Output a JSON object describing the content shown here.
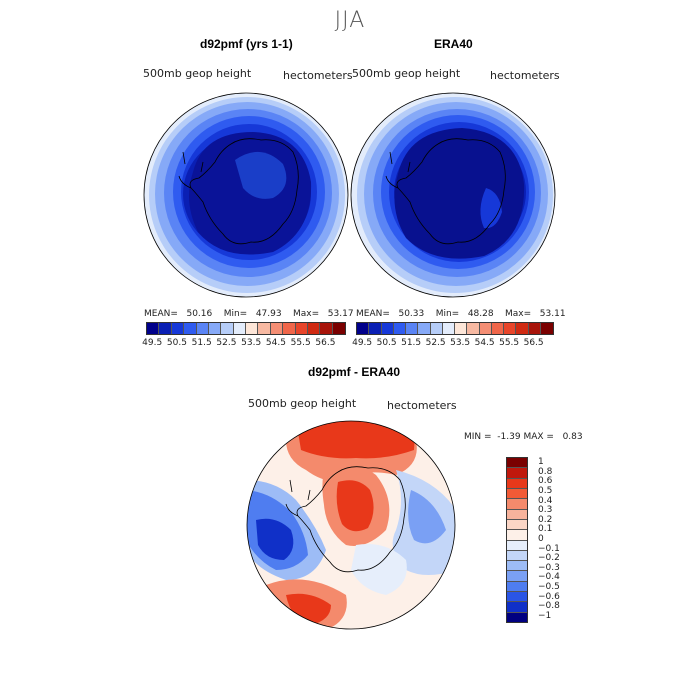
{
  "season": "JJA",
  "panels": {
    "model": {
      "title": "d92pmf (yrs 1-1)",
      "variable": "500mb geop height",
      "units": "hectometers",
      "mean_label": "MEAN=",
      "mean": "50.16",
      "min_label": "Min=",
      "min": "47.93",
      "max_label": "Max=",
      "max": "53.17"
    },
    "obs": {
      "title": "ERA40",
      "variable": "500mb geop height",
      "units": "hectometers",
      "mean_label": "MEAN=",
      "mean": "50.33",
      "min_label": "Min=",
      "min": "48.28",
      "max_label": "Max=",
      "max": "53.11"
    },
    "diff": {
      "title": "d92pmf - ERA40",
      "variable": "500mb geop height",
      "units": "hectometers",
      "min_label": "MIN =",
      "min": "-1.39",
      "max_label": "MAX =",
      "max": "0.83"
    }
  },
  "field_colorbar": {
    "colors": [
      "#00008b",
      "#0a1fb4",
      "#1638d8",
      "#2f5bf0",
      "#5a84f5",
      "#86a9f7",
      "#b6cdf8",
      "#e3ecfb",
      "#fde6d8",
      "#f7b9a2",
      "#f48e74",
      "#f0664a",
      "#e8452a",
      "#d02a12",
      "#a8140a",
      "#7a0000"
    ],
    "labels": [
      "49.5",
      "50.5",
      "51.5",
      "52.5",
      "53.5",
      "54.5",
      "55.5",
      "56.5"
    ]
  },
  "diff_colorbar": {
    "colors_top_to_bottom": [
      "#7a0000",
      "#c0180c",
      "#e8381a",
      "#f25a36",
      "#f48a6c",
      "#f7b39c",
      "#fbd6c6",
      "#fdf0e8",
      "#e6eefb",
      "#c3d6f8",
      "#9dbcf6",
      "#7aa0f4",
      "#4f7df0",
      "#2a55e6",
      "#1030c8",
      "#000080"
    ],
    "labels": [
      "1",
      "0.8",
      "0.6",
      "0.5",
      "0.4",
      "0.3",
      "0.2",
      "0.1",
      "0",
      "−0.1",
      "−0.2",
      "−0.3",
      "−0.4",
      "−0.5",
      "−0.6",
      "−0.8",
      "−1"
    ]
  }
}
